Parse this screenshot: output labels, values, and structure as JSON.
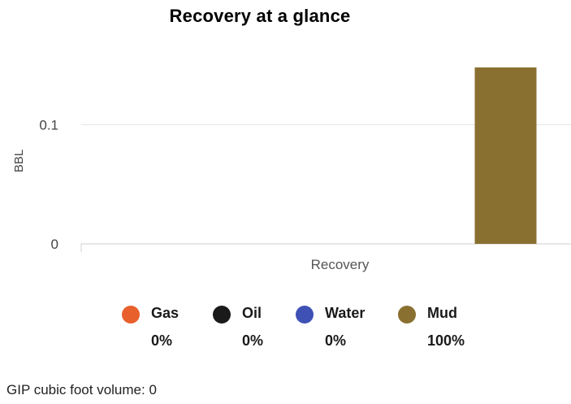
{
  "chart_data": {
    "type": "bar",
    "title": "Recovery at a glance",
    "xlabel": "",
    "ylabel": "BBL",
    "categories": [
      "Recovery"
    ],
    "y_ticks": [
      "0",
      "0.1"
    ],
    "ylim": [
      0,
      0.15
    ],
    "grid": true,
    "series": [
      {
        "name": "Gas",
        "values": [
          0
        ],
        "percent": "0%",
        "color": "#e8602c"
      },
      {
        "name": "Oil",
        "values": [
          0
        ],
        "percent": "0%",
        "color": "#1a1a1a"
      },
      {
        "name": "Water",
        "values": [
          0
        ],
        "percent": "0%",
        "color": "#3f51b5"
      },
      {
        "name": "Mud",
        "values": [
          0.148
        ],
        "percent": "100%",
        "color": "#8a7030"
      }
    ],
    "legend_position": "bottom"
  },
  "footer": {
    "gip_label": "GIP cubic foot volume:",
    "gip_value": "0"
  }
}
